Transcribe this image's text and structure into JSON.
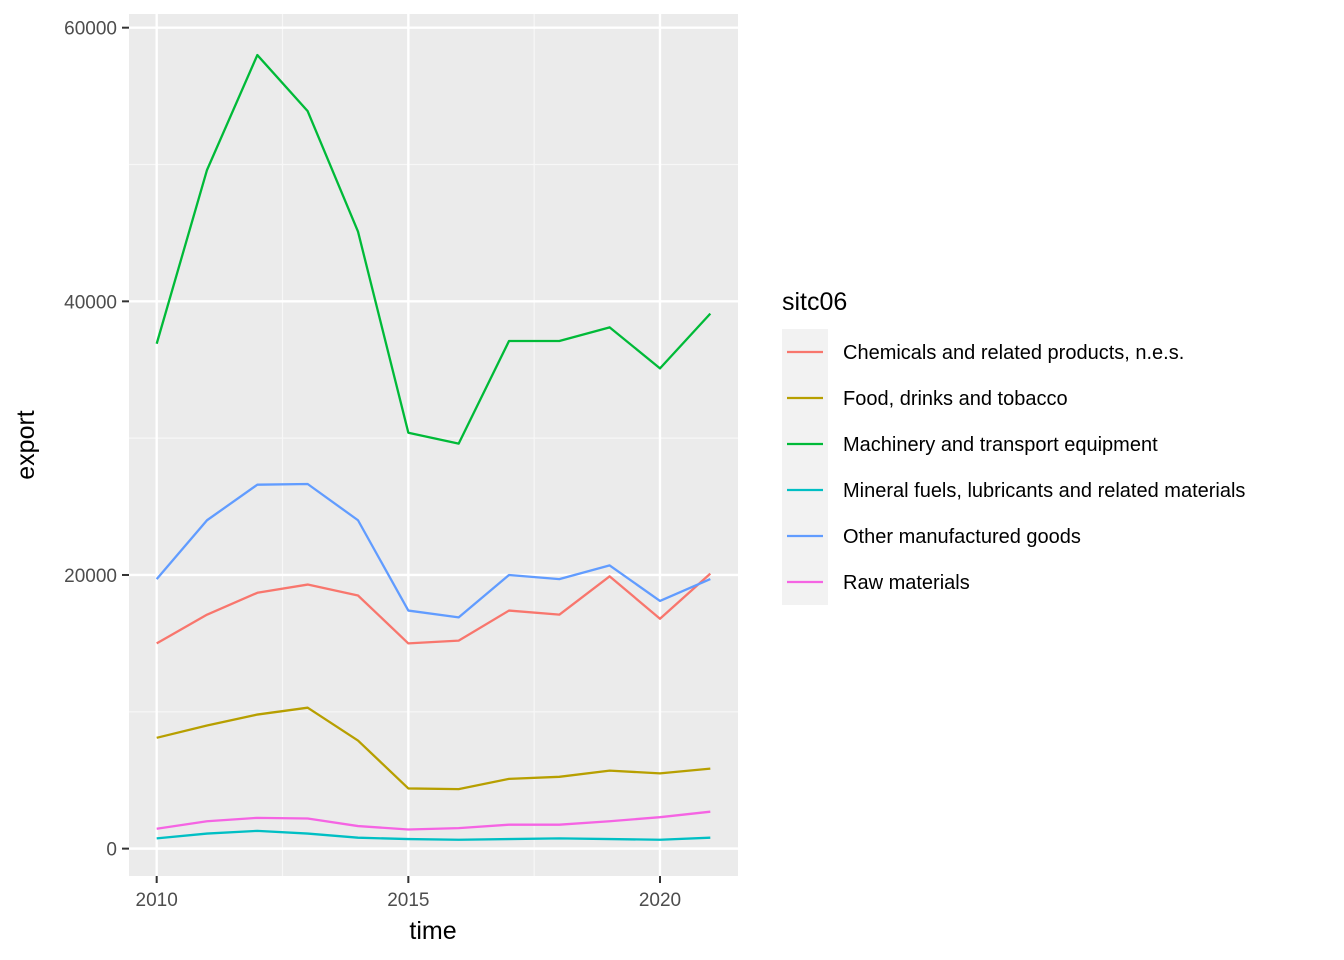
{
  "chart_data": {
    "type": "line",
    "title": "",
    "xlabel": "time",
    "ylabel": "export",
    "x": [
      2010,
      2011,
      2012,
      2013,
      2014,
      2015,
      2016,
      2017,
      2018,
      2019,
      2020,
      2021
    ],
    "xlim": [
      2009.45,
      2021.55
    ],
    "ylim": [
      -2000,
      61000
    ],
    "x_ticks": [
      2010,
      2015,
      2020
    ],
    "y_ticks": [
      0,
      20000,
      40000,
      60000
    ],
    "grid": true,
    "legend": {
      "title": "sitc06",
      "position": "right"
    },
    "series": [
      {
        "name": "Chemicals and related products, n.e.s.",
        "color": "#F8766D",
        "values": [
          15000,
          17100,
          18700,
          19300,
          18500,
          15000,
          15200,
          17400,
          17100,
          19900,
          16800,
          20100
        ]
      },
      {
        "name": "Food, drinks and tobacco",
        "color": "#B79F00",
        "values": [
          8100,
          9000,
          9800,
          10300,
          7900,
          4400,
          4350,
          5100,
          5250,
          5700,
          5500,
          5850
        ]
      },
      {
        "name": "Machinery and transport equipment",
        "color": "#00BA38",
        "values": [
          36900,
          49600,
          58000,
          53900,
          45100,
          30400,
          29600,
          37100,
          37100,
          38100,
          35100,
          39100
        ]
      },
      {
        "name": "Mineral fuels, lubricants and related materials",
        "color": "#00BFC4",
        "values": [
          750,
          1100,
          1300,
          1100,
          800,
          700,
          650,
          700,
          750,
          700,
          650,
          800
        ]
      },
      {
        "name": "Other manufactured goods",
        "color": "#619CFF",
        "values": [
          19700,
          24000,
          26600,
          26650,
          24000,
          17400,
          16900,
          20000,
          19700,
          20700,
          18100,
          19700
        ]
      },
      {
        "name": "Raw materials",
        "color": "#F564E3",
        "values": [
          1450,
          2000,
          2250,
          2200,
          1650,
          1400,
          1500,
          1750,
          1750,
          2000,
          2300,
          2700
        ]
      }
    ]
  }
}
